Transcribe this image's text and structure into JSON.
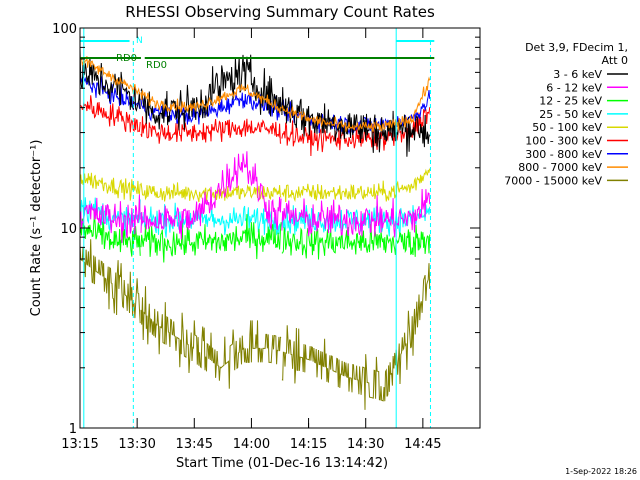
{
  "title": "RHESSI Observing Summary Count Rates",
  "timestamp": "1-Sep-2022 18:26",
  "legend_header": [
    "Det 3,9, FDecim 1,",
    "Att 0"
  ],
  "chart_data": {
    "type": "line",
    "title": "RHESSI Observing Summary Count Rates",
    "xlabel": "Start Time (01-Dec-16 13:14:42)",
    "ylabel": "Count Rate (s⁻¹ detector⁻¹)",
    "x_ticks": [
      "13:15",
      "13:30",
      "13:45",
      "14:00",
      "14:15",
      "14:30",
      "14:45"
    ],
    "y_ticks": [
      {
        "value": 1,
        "label": "1"
      },
      {
        "value": 10,
        "label": "10"
      },
      {
        "value": 100,
        "label": "100"
      }
    ],
    "yscale": "log",
    "xlim_minutes": [
      13.25,
      15.0
    ],
    "ylim": [
      1,
      100
    ],
    "x_times": [
      "13:15",
      "13:25",
      "13:35",
      "13:45",
      "13:52",
      "13:58",
      "14:05",
      "14:15",
      "14:25",
      "14:35",
      "14:42",
      "14:47"
    ],
    "series": [
      {
        "name": "3 - 6 keV",
        "color": "#000000",
        "values": [
          60,
          50,
          38,
          40,
          52,
          60,
          45,
          35,
          33,
          30,
          32,
          30
        ]
      },
      {
        "name": "6 - 12 keV",
        "color": "#ff00ff",
        "values": [
          12,
          11,
          11,
          11,
          16,
          22,
          12,
          11,
          11,
          11,
          11,
          14
        ]
      },
      {
        "name": "12 - 25 keV",
        "color": "#00ff00",
        "values": [
          10,
          8.5,
          8.5,
          8.5,
          8.5,
          9,
          9,
          8.5,
          8.5,
          8.5,
          8.5,
          9
        ]
      },
      {
        "name": "25 - 50 keV",
        "color": "#00ffff",
        "values": [
          13,
          11,
          11,
          11,
          11,
          11,
          11,
          11,
          11,
          11,
          11,
          12
        ]
      },
      {
        "name": "50 - 100 keV",
        "color": "#d8d800",
        "values": [
          18,
          16,
          15,
          15,
          15,
          15,
          15,
          15,
          15,
          15,
          16,
          20
        ]
      },
      {
        "name": "100 - 300 keV",
        "color": "#ff0000",
        "values": [
          42,
          36,
          30,
          30,
          31,
          32,
          31,
          28,
          28,
          28,
          30,
          40
        ]
      },
      {
        "name": "300 - 800 keV",
        "color": "#0000ff",
        "values": [
          55,
          45,
          38,
          36,
          40,
          45,
          40,
          35,
          33,
          33,
          35,
          45
        ]
      },
      {
        "name": "800 - 7000 keV",
        "color": "#ff8c00",
        "values": [
          70,
          55,
          42,
          40,
          45,
          50,
          42,
          35,
          32,
          32,
          35,
          55
        ]
      },
      {
        "name": "7000 - 15000 keV",
        "color": "#808000",
        "values": [
          7,
          5,
          3.3,
          2.5,
          2,
          2.5,
          2.5,
          2.2,
          1.8,
          1.6,
          3,
          6
        ]
      }
    ],
    "annotations": {
      "rd_labels": [
        "RD0",
        "RD0"
      ],
      "marker_letter": "N"
    }
  }
}
